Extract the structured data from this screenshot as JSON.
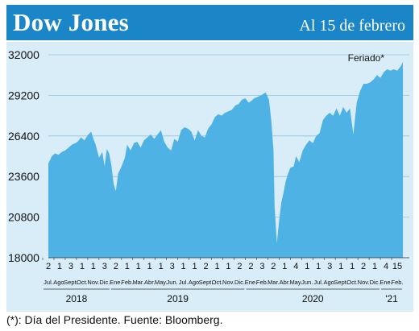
{
  "header": {
    "title": "Dow Jones",
    "date": "Al 15 de febrero"
  },
  "note": "(*): Día del Presidente. Fuente: Bloomberg.",
  "colors": {
    "header": "#1a86c8",
    "panel_bg": "#d9edf8",
    "area": "#4fb2e4",
    "text_dark": "#111111"
  },
  "chart_data": {
    "type": "area",
    "y_ticks": [
      "32000",
      "29200",
      "26400",
      "23600",
      "20800",
      "18000"
    ],
    "ylim": [
      18000,
      32000
    ],
    "annotation": "Feriado*",
    "x_ticks": [
      {
        "day": "2",
        "month": "Jul."
      },
      {
        "day": "1",
        "month": "Ago."
      },
      {
        "day": "3",
        "month": "Sept."
      },
      {
        "day": "1",
        "month": "Oct."
      },
      {
        "day": "1",
        "month": "Nov."
      },
      {
        "day": "3",
        "month": "Dic."
      },
      {
        "day": "2",
        "month": "Ene."
      },
      {
        "day": "1",
        "month": "Feb."
      },
      {
        "day": "1",
        "month": "Mar."
      },
      {
        "day": "1",
        "month": "Abr."
      },
      {
        "day": "1",
        "month": "May."
      },
      {
        "day": "3",
        "month": "Jun."
      },
      {
        "day": "1",
        "month": "Jul."
      },
      {
        "day": "1",
        "month": "Ago."
      },
      {
        "day": "2",
        "month": "Sept."
      },
      {
        "day": "1",
        "month": "Oct."
      },
      {
        "day": "1",
        "month": "Nov."
      },
      {
        "day": "2",
        "month": "Dic."
      },
      {
        "day": "2",
        "month": "Ene."
      },
      {
        "day": "3",
        "month": "Feb."
      },
      {
        "day": "2",
        "month": "Mar."
      },
      {
        "day": "1",
        "month": "Abr."
      },
      {
        "day": "4",
        "month": "May."
      },
      {
        "day": "1",
        "month": "Jun."
      },
      {
        "day": "1",
        "month": "Jul."
      },
      {
        "day": "3",
        "month": "Ago."
      },
      {
        "day": "1",
        "month": "Sept."
      },
      {
        "day": "1",
        "month": "Oct."
      },
      {
        "day": "2",
        "month": "Nov."
      },
      {
        "day": "1",
        "month": "Dic."
      },
      {
        "day": "4",
        "month": "Ene."
      },
      {
        "day": "15",
        "month": "Feb."
      }
    ],
    "years": [
      {
        "label": "2018",
        "from": 0,
        "to": 6
      },
      {
        "label": "2019",
        "from": 6,
        "to": 18
      },
      {
        "label": "2020",
        "from": 18,
        "to": 30
      },
      {
        "label": "'21",
        "from": 30,
        "to": 32
      }
    ],
    "x": [
      0,
      0.3,
      0.6,
      0.9,
      1.2,
      1.5,
      1.8,
      2.1,
      2.4,
      2.6,
      2.9,
      3.2,
      3.5,
      3.8,
      4.0,
      4.2,
      4.5,
      4.8,
      5.0,
      5.2,
      5.4,
      5.6,
      5.8,
      6.0,
      6.2,
      6.5,
      6.8,
      7.0,
      7.3,
      7.6,
      7.9,
      8.2,
      8.5,
      8.8,
      9.1,
      9.4,
      9.7,
      10.0,
      10.3,
      10.6,
      10.9,
      11.2,
      11.5,
      11.8,
      12.1,
      12.4,
      12.7,
      13.0,
      13.3,
      13.6,
      13.9,
      14.2,
      14.5,
      14.8,
      15.1,
      15.4,
      15.7,
      16.0,
      16.3,
      16.6,
      16.9,
      17.2,
      17.5,
      17.8,
      18.0,
      18.3,
      18.6,
      18.9,
      19.1,
      19.3,
      19.6,
      19.8,
      20.0,
      20.1,
      20.3,
      20.5,
      20.7,
      20.9,
      21.1,
      21.3,
      21.5,
      21.8,
      22.0,
      22.3,
      22.6,
      22.9,
      23.2,
      23.5,
      23.8,
      24.1,
      24.4,
      24.7,
      25.0,
      25.3,
      25.6,
      25.9,
      26.2,
      26.5,
      26.8,
      27.1,
      27.4,
      27.7,
      28.0,
      28.3,
      28.6,
      28.9,
      29.2,
      29.5,
      29.8,
      30.1,
      30.4,
      30.7,
      31.0,
      31.3,
      31.5
    ],
    "y": [
      24500,
      25000,
      25200,
      25100,
      25300,
      25400,
      25600,
      25800,
      25900,
      26000,
      26300,
      26100,
      26450,
      26700,
      26200,
      25800,
      24900,
      25300,
      24300,
      25500,
      25200,
      24400,
      23100,
      22600,
      23800,
      24300,
      24900,
      25800,
      25400,
      25900,
      26000,
      25600,
      26100,
      26300,
      26500,
      26200,
      26500,
      26800,
      26000,
      25600,
      25400,
      26200,
      26000,
      26800,
      27000,
      26900,
      26700,
      26100,
      26800,
      26400,
      26300,
      26900,
      27200,
      27700,
      27900,
      27800,
      28000,
      28100,
      28200,
      28500,
      28600,
      28900,
      29000,
      28700,
      28800,
      29000,
      29100,
      29200,
      29300,
      29400,
      28900,
      27500,
      25400,
      21500,
      19000,
      20500,
      21800,
      22500,
      23300,
      23800,
      24200,
      24300,
      25000,
      24600,
      25400,
      25800,
      26100,
      25900,
      26400,
      26600,
      27500,
      27800,
      28000,
      27800,
      28300,
      27800,
      28400,
      28000,
      28300,
      26500,
      28700,
      29500,
      30000,
      30000,
      30100,
      30300,
      30600,
      30400,
      30800,
      31000,
      30900,
      31000,
      30900,
      31200,
      31500
    ]
  }
}
